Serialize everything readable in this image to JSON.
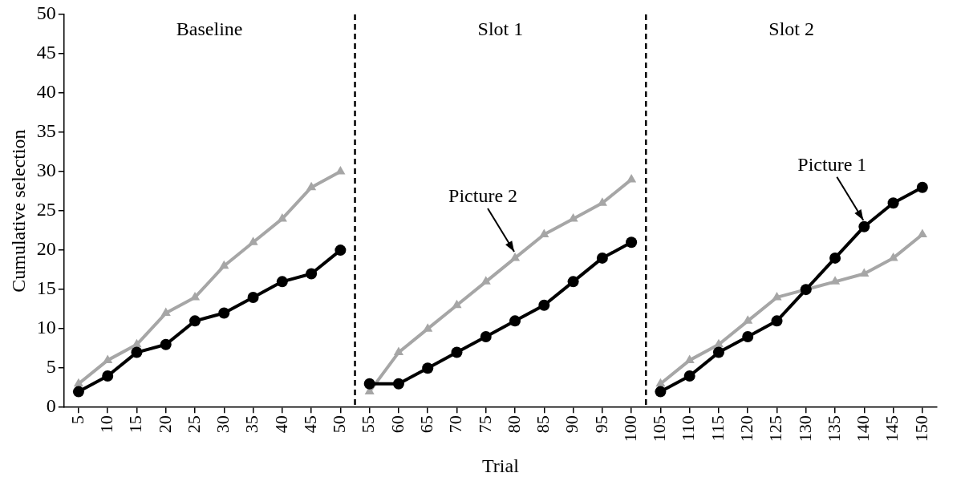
{
  "chart_data": {
    "type": "line",
    "xlabel": "Trial",
    "ylabel": "Cumulative selection",
    "x": [
      5,
      10,
      15,
      20,
      25,
      30,
      35,
      40,
      45,
      50,
      55,
      60,
      65,
      70,
      75,
      80,
      85,
      90,
      95,
      100,
      105,
      110,
      115,
      120,
      125,
      130,
      135,
      140,
      145,
      150
    ],
    "series": [
      {
        "color": "#000000",
        "marker": "circle",
        "values": [
          2,
          4,
          7,
          8,
          11,
          12,
          14,
          16,
          17,
          20,
          3,
          3,
          5,
          7,
          9,
          11,
          13,
          16,
          19,
          21,
          2,
          4,
          7,
          9,
          11,
          15,
          19,
          23,
          26,
          28
        ]
      },
      {
        "color": "#a6a6a6",
        "marker": "triangle",
        "values": [
          3,
          6,
          8,
          12,
          14,
          18,
          21,
          24,
          28,
          30,
          2,
          7,
          10,
          13,
          16,
          19,
          22,
          24,
          26,
          29,
          3,
          6,
          8,
          11,
          14,
          15,
          16,
          17,
          19,
          22
        ]
      }
    ],
    "xlim": [
      2.5,
      152.5
    ],
    "xticks": [
      5,
      10,
      15,
      20,
      25,
      30,
      35,
      40,
      45,
      50,
      55,
      60,
      65,
      70,
      75,
      80,
      85,
      90,
      95,
      100,
      105,
      110,
      115,
      120,
      125,
      130,
      135,
      140,
      145,
      150
    ],
    "ylim": [
      0,
      50
    ],
    "yticks": [
      0,
      5,
      10,
      15,
      20,
      25,
      30,
      35,
      40,
      45,
      50
    ],
    "ref_lines": [
      {
        "axis": "x",
        "value": 52.5,
        "color": "#000000",
        "line_style": "dashed"
      },
      {
        "axis": "x",
        "value": 102.5,
        "color": "#000000",
        "line_style": "dashed"
      }
    ],
    "annotations": [
      "Baseline",
      "Slot 1",
      "Slot 2",
      {
        "text": "Picture 2",
        "x": 80,
        "y": 19
      },
      {
        "text": "Picture 1",
        "x": 140,
        "y": 23
      }
    ],
    "grid": false,
    "legend": false
  }
}
